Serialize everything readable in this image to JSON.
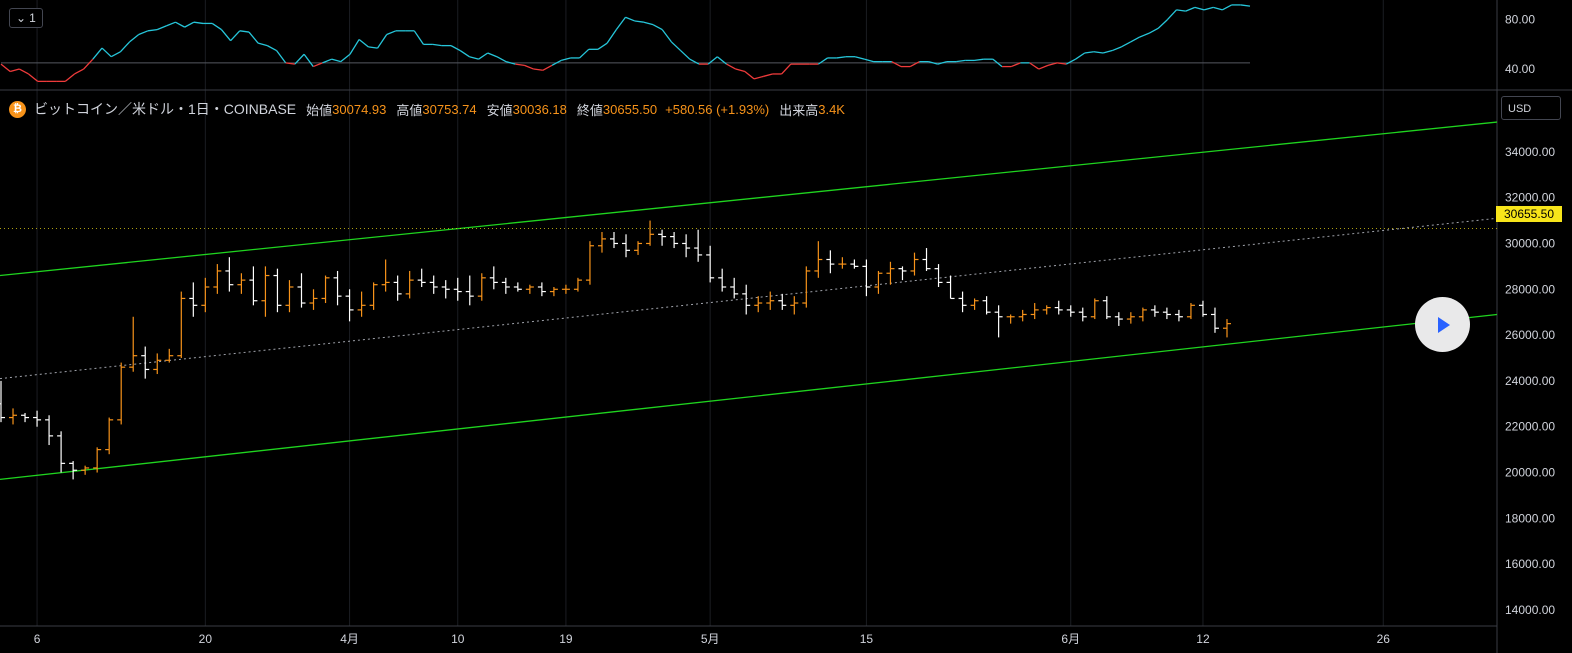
{
  "toolbar": {
    "pane_toggle_label": "1"
  },
  "legend": {
    "symbol": "ビットコイン／米ドル・1日・COINBASE",
    "open_label": "始値",
    "open": "30074.93",
    "high_label": "高値",
    "high": "30753.74",
    "low_label": "安値",
    "low": "30036.18",
    "close_label": "終値",
    "close": "30655.50",
    "change": "+580.56 (+1.93%)",
    "volume_label": "出来高",
    "volume": "3.4K"
  },
  "currency_button": "USD",
  "last_price_tag": "30655.50",
  "colors": {
    "up": "#f7931a",
    "down": "#ffffff",
    "channel": "#1fd41f",
    "rsi_up": "#26c6da",
    "rsi_down": "#ef3b3b",
    "tag": "#f7e51a"
  },
  "icons": {
    "coin": "bitcoin-icon",
    "play": "play-icon",
    "chevron": "chevron-down-icon"
  },
  "chart_data": [
    {
      "type": "line",
      "title": "",
      "y_ticks": [
        "80.00",
        "40.00"
      ],
      "ylim": [
        23,
        96
      ],
      "reference_level": 45,
      "series": [
        {
          "values": [
            44,
            38,
            40,
            36,
            30,
            30,
            30,
            30,
            36,
            40,
            48,
            57,
            50,
            54,
            62,
            68,
            71,
            72,
            75,
            78,
            74,
            78,
            77,
            77,
            72,
            63,
            71,
            70,
            61,
            59,
            55,
            45,
            44,
            52,
            42,
            45,
            48,
            46,
            52,
            64,
            58,
            57,
            68,
            71,
            71,
            71,
            60,
            60,
            59,
            59,
            55,
            50,
            48,
            53,
            50,
            46,
            44,
            43,
            40,
            39,
            43,
            47,
            49,
            49,
            56,
            56,
            61,
            72,
            82,
            79,
            78,
            76,
            72,
            62,
            55,
            48,
            44,
            44,
            50,
            44,
            40,
            38,
            32,
            34,
            36,
            36,
            44,
            44,
            44,
            44,
            49,
            49,
            50,
            50,
            48,
            46,
            46,
            46,
            42,
            42,
            46,
            46,
            44,
            46,
            46,
            47,
            47,
            48,
            48,
            42,
            42,
            45,
            45,
            40,
            43,
            45,
            44,
            48,
            53,
            54,
            53,
            55,
            58,
            62,
            66,
            69,
            73,
            80,
            88,
            87,
            90,
            88,
            90,
            88,
            92,
            92,
            91
          ]
        }
      ]
    },
    {
      "type": "ohlc",
      "title": "ビットコイン／米ドル・1日・COINBASE",
      "ylim": [
        13300,
        36700
      ],
      "y_ticks": [
        "34000.00",
        "32000.00",
        "30000.00",
        "28000.00",
        "26000.00",
        "24000.00",
        "22000.00",
        "20000.00",
        "18000.00",
        "16000.00",
        "14000.00"
      ],
      "x_ticks": [
        "6",
        "20",
        "4月",
        "10",
        "19",
        "5月",
        "15",
        "6月",
        "12",
        "26"
      ],
      "x_tick_index": [
        3,
        17,
        29,
        38,
        47,
        59,
        72,
        89,
        100,
        115
      ],
      "last_price": 30655.5,
      "channel_upper": [
        28600,
        35300
      ],
      "channel_lower": [
        19700,
        26900
      ],
      "channel_mid": [
        24100,
        31100
      ],
      "candles": [
        {
          "o": 23000,
          "h": 24000,
          "l": 22200,
          "c": 22400
        },
        {
          "o": 22400,
          "h": 22800,
          "l": 22100,
          "c": 22500
        },
        {
          "o": 22500,
          "h": 22600,
          "l": 22200,
          "c": 22400
        },
        {
          "o": 22400,
          "h": 22700,
          "l": 22000,
          "c": 22300
        },
        {
          "o": 22300,
          "h": 22500,
          "l": 21200,
          "c": 21600
        },
        {
          "o": 21600,
          "h": 21800,
          "l": 20000,
          "c": 20400
        },
        {
          "o": 20400,
          "h": 20500,
          "l": 19700,
          "c": 20100
        },
        {
          "o": 20100,
          "h": 20300,
          "l": 19900,
          "c": 20200
        },
        {
          "o": 20200,
          "h": 21100,
          "l": 20000,
          "c": 21000
        },
        {
          "o": 21000,
          "h": 22400,
          "l": 20800,
          "c": 22300
        },
        {
          "o": 22300,
          "h": 24800,
          "l": 22100,
          "c": 24600
        },
        {
          "o": 24600,
          "h": 26800,
          "l": 24400,
          "c": 25100
        },
        {
          "o": 25100,
          "h": 25500,
          "l": 24100,
          "c": 24500
        },
        {
          "o": 24500,
          "h": 25200,
          "l": 24300,
          "c": 24900
        },
        {
          "o": 24900,
          "h": 25400,
          "l": 24800,
          "c": 25100
        },
        {
          "o": 25100,
          "h": 27900,
          "l": 25000,
          "c": 27600
        },
        {
          "o": 27600,
          "h": 28300,
          "l": 26800,
          "c": 27300
        },
        {
          "o": 27300,
          "h": 28500,
          "l": 27000,
          "c": 28100
        },
        {
          "o": 28100,
          "h": 29100,
          "l": 27800,
          "c": 28800
        },
        {
          "o": 28800,
          "h": 29400,
          "l": 27900,
          "c": 28200
        },
        {
          "o": 28200,
          "h": 28700,
          "l": 27800,
          "c": 28400
        },
        {
          "o": 28400,
          "h": 29000,
          "l": 27300,
          "c": 27500
        },
        {
          "o": 27500,
          "h": 29000,
          "l": 26800,
          "c": 28600
        },
        {
          "o": 28600,
          "h": 28900,
          "l": 27000,
          "c": 27300
        },
        {
          "o": 27300,
          "h": 28400,
          "l": 27000,
          "c": 28100
        },
        {
          "o": 28100,
          "h": 28700,
          "l": 27200,
          "c": 27400
        },
        {
          "o": 27400,
          "h": 28000,
          "l": 27100,
          "c": 27600
        },
        {
          "o": 27600,
          "h": 28600,
          "l": 27400,
          "c": 28500
        },
        {
          "o": 28500,
          "h": 28800,
          "l": 27300,
          "c": 27700
        },
        {
          "o": 27700,
          "h": 28000,
          "l": 26600,
          "c": 27100
        },
        {
          "o": 27100,
          "h": 27900,
          "l": 26800,
          "c": 27300
        },
        {
          "o": 27300,
          "h": 28300,
          "l": 27100,
          "c": 28200
        },
        {
          "o": 28200,
          "h": 29300,
          "l": 27900,
          "c": 28300
        },
        {
          "o": 28300,
          "h": 28600,
          "l": 27500,
          "c": 27800
        },
        {
          "o": 27800,
          "h": 28800,
          "l": 27600,
          "c": 28400
        },
        {
          "o": 28400,
          "h": 28900,
          "l": 28100,
          "c": 28300
        },
        {
          "o": 28300,
          "h": 28600,
          "l": 27800,
          "c": 28100
        },
        {
          "o": 28100,
          "h": 28400,
          "l": 27600,
          "c": 28000
        },
        {
          "o": 28000,
          "h": 28500,
          "l": 27500,
          "c": 27900
        },
        {
          "o": 27900,
          "h": 28600,
          "l": 27300,
          "c": 27700
        },
        {
          "o": 27700,
          "h": 28700,
          "l": 27500,
          "c": 28500
        },
        {
          "o": 28500,
          "h": 29000,
          "l": 28000,
          "c": 28300
        },
        {
          "o": 28300,
          "h": 28500,
          "l": 27800,
          "c": 28100
        },
        {
          "o": 28100,
          "h": 28300,
          "l": 27900,
          "c": 28000
        },
        {
          "o": 28000,
          "h": 28200,
          "l": 27800,
          "c": 28100
        },
        {
          "o": 28100,
          "h": 28300,
          "l": 27700,
          "c": 27900
        },
        {
          "o": 27900,
          "h": 28100,
          "l": 27700,
          "c": 28000
        },
        {
          "o": 28000,
          "h": 28200,
          "l": 27800,
          "c": 28000
        },
        {
          "o": 28000,
          "h": 28500,
          "l": 27900,
          "c": 28400
        },
        {
          "o": 28400,
          "h": 30100,
          "l": 28200,
          "c": 29900
        },
        {
          "o": 29900,
          "h": 30500,
          "l": 29600,
          "c": 30200
        },
        {
          "o": 30200,
          "h": 30500,
          "l": 29800,
          "c": 30000
        },
        {
          "o": 30000,
          "h": 30400,
          "l": 29400,
          "c": 29700
        },
        {
          "o": 29700,
          "h": 30100,
          "l": 29500,
          "c": 30000
        },
        {
          "o": 30000,
          "h": 31000,
          "l": 29900,
          "c": 30400
        },
        {
          "o": 30400,
          "h": 30600,
          "l": 29900,
          "c": 30300
        },
        {
          "o": 30300,
          "h": 30500,
          "l": 29800,
          "c": 30000
        },
        {
          "o": 30000,
          "h": 30400,
          "l": 29400,
          "c": 29800
        },
        {
          "o": 29800,
          "h": 30600,
          "l": 29200,
          "c": 29500
        },
        {
          "o": 29500,
          "h": 29900,
          "l": 28300,
          "c": 28500
        },
        {
          "o": 28500,
          "h": 28900,
          "l": 27900,
          "c": 28100
        },
        {
          "o": 28100,
          "h": 28500,
          "l": 27600,
          "c": 27800
        },
        {
          "o": 27800,
          "h": 28200,
          "l": 26900,
          "c": 27300
        },
        {
          "o": 27300,
          "h": 27700,
          "l": 27000,
          "c": 27400
        },
        {
          "o": 27400,
          "h": 27900,
          "l": 27100,
          "c": 27500
        },
        {
          "o": 27500,
          "h": 27800,
          "l": 27100,
          "c": 27300
        },
        {
          "o": 27300,
          "h": 27700,
          "l": 26900,
          "c": 27400
        },
        {
          "o": 27400,
          "h": 29000,
          "l": 27200,
          "c": 28800
        },
        {
          "o": 28800,
          "h": 30100,
          "l": 28500,
          "c": 29300
        },
        {
          "o": 29300,
          "h": 29700,
          "l": 28700,
          "c": 29100
        },
        {
          "o": 29100,
          "h": 29400,
          "l": 28900,
          "c": 29100
        },
        {
          "o": 29100,
          "h": 29300,
          "l": 28900,
          "c": 29000
        },
        {
          "o": 29000,
          "h": 29300,
          "l": 27700,
          "c": 28100
        },
        {
          "o": 28100,
          "h": 28800,
          "l": 27800,
          "c": 28700
        },
        {
          "o": 28700,
          "h": 29200,
          "l": 28200,
          "c": 28900
        },
        {
          "o": 28900,
          "h": 29000,
          "l": 28400,
          "c": 28800
        },
        {
          "o": 28800,
          "h": 29600,
          "l": 28600,
          "c": 29300
        },
        {
          "o": 29300,
          "h": 29800,
          "l": 28800,
          "c": 28900
        },
        {
          "o": 28900,
          "h": 29100,
          "l": 28100,
          "c": 28300
        },
        {
          "o": 28300,
          "h": 28600,
          "l": 27600,
          "c": 27600
        },
        {
          "o": 27600,
          "h": 27900,
          "l": 27000,
          "c": 27300
        },
        {
          "o": 27300,
          "h": 27600,
          "l": 27100,
          "c": 27500
        },
        {
          "o": 27500,
          "h": 27700,
          "l": 26900,
          "c": 27000
        },
        {
          "o": 27000,
          "h": 27300,
          "l": 25900,
          "c": 26800
        },
        {
          "o": 26800,
          "h": 26900,
          "l": 26500,
          "c": 26800
        },
        {
          "o": 26800,
          "h": 27100,
          "l": 26600,
          "c": 26900
        },
        {
          "o": 26900,
          "h": 27400,
          "l": 26700,
          "c": 27100
        },
        {
          "o": 27100,
          "h": 27300,
          "l": 26900,
          "c": 27200
        },
        {
          "o": 27200,
          "h": 27500,
          "l": 26900,
          "c": 27100
        },
        {
          "o": 27100,
          "h": 27300,
          "l": 26800,
          "c": 27000
        },
        {
          "o": 27000,
          "h": 27200,
          "l": 26600,
          "c": 26800
        },
        {
          "o": 26800,
          "h": 27600,
          "l": 26700,
          "c": 27500
        },
        {
          "o": 27500,
          "h": 27700,
          "l": 26700,
          "c": 26800
        },
        {
          "o": 26800,
          "h": 27000,
          "l": 26400,
          "c": 26700
        },
        {
          "o": 26700,
          "h": 27000,
          "l": 26500,
          "c": 26800
        },
        {
          "o": 26800,
          "h": 27200,
          "l": 26600,
          "c": 27100
        },
        {
          "o": 27100,
          "h": 27300,
          "l": 26800,
          "c": 27000
        },
        {
          "o": 27000,
          "h": 27200,
          "l": 26700,
          "c": 26900
        },
        {
          "o": 26900,
          "h": 27100,
          "l": 26600,
          "c": 26800
        },
        {
          "o": 26800,
          "h": 27400,
          "l": 26700,
          "c": 27300
        },
        {
          "o": 27300,
          "h": 27500,
          "l": 26800,
          "c": 26900
        },
        {
          "o": 26900,
          "h": 27200,
          "l": 26100,
          "c": 26300
        },
        {
          "o": 26300,
          "h": 26700,
          "l": 25900,
          "c": 26500
        }
      ]
    }
  ]
}
